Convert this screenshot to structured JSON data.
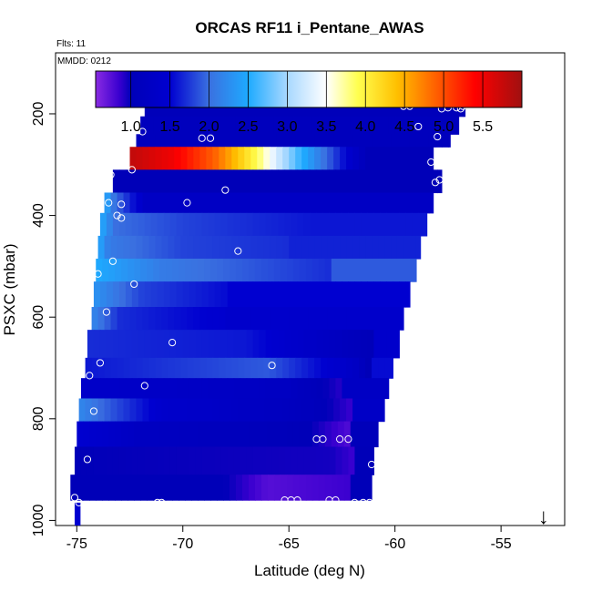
{
  "chart_data": {
    "type": "heatmap",
    "title": "ORCAS RF11 i_Pentane_AWAS",
    "flights_note": "Flts: 11",
    "date_note": "MMDD: 0212",
    "xlabel": "Latitude (deg N)",
    "ylabel": "PSXC (mbar)",
    "xlim": [
      -76,
      -52
    ],
    "ylim": [
      1010,
      80
    ],
    "x_ticks": [
      -75,
      -70,
      -65,
      -60,
      -55
    ],
    "y_ticks": [
      200,
      400,
      600,
      800,
      1000
    ],
    "colorbar": {
      "range": [
        0.55,
        6.0
      ],
      "ticks": [
        1.0,
        1.5,
        2.0,
        2.5,
        3.0,
        3.5,
        4.0,
        4.5,
        5.0,
        5.5
      ],
      "tick_labels": [
        "1.0",
        "1.5",
        "2.0",
        "2.5",
        "3.0",
        "3.5",
        "4.0",
        "4.5",
        "5.0",
        "5.5"
      ],
      "stops": [
        {
          "v": 0.55,
          "color": "#8a2be2"
        },
        {
          "v": 0.85,
          "color": "#3a00d0"
        },
        {
          "v": 1.0,
          "color": "#0000b8"
        },
        {
          "v": 1.5,
          "color": "#0000d0"
        },
        {
          "v": 2.0,
          "color": "#3a70e0"
        },
        {
          "v": 2.5,
          "color": "#1eaaff"
        },
        {
          "v": 3.0,
          "color": "#a8d8ff"
        },
        {
          "v": 3.5,
          "color": "#ffffff"
        },
        {
          "v": 3.9,
          "color": "#ffff50"
        },
        {
          "v": 4.4,
          "color": "#ffc000"
        },
        {
          "v": 4.9,
          "color": "#ff6000"
        },
        {
          "v": 5.4,
          "color": "#ff0000"
        },
        {
          "v": 6.0,
          "color": "#a01010"
        }
      ]
    },
    "layers": [
      {
        "p_top": 175,
        "p_bot": 205,
        "lat_start": -71.8,
        "lat_end": -56.7,
        "value": 1.05
      },
      {
        "p_top": 205,
        "p_bot": 240,
        "lat_start": -72.0,
        "lat_end": -57.0,
        "value": 1.1
      },
      {
        "p_top": 240,
        "p_bot": 265,
        "lat_start": -72.2,
        "lat_end": -57.4,
        "value": 1.1
      },
      {
        "p_top": 265,
        "p_bot": 310,
        "lat_start": -72.5,
        "lat_end": -58.2,
        "value": 1.0,
        "profile": [
          [
            -72.5,
            5.8
          ],
          [
            -70.5,
            5.5
          ],
          [
            -68.5,
            4.9
          ],
          [
            -67.5,
            4.4
          ],
          [
            -66.5,
            3.9
          ],
          [
            -65.5,
            3.2
          ],
          [
            -64.5,
            2.6
          ],
          [
            -63.5,
            2.1
          ],
          [
            -62.5,
            1.6
          ],
          [
            -61.5,
            1.1
          ]
        ]
      },
      {
        "p_top": 310,
        "p_bot": 355,
        "lat_start": -73.3,
        "lat_end": -57.8,
        "value": 1.0
      },
      {
        "p_top": 355,
        "p_bot": 395,
        "lat_start": -73.7,
        "lat_end": -58.2,
        "value": 1.25,
        "profile": [
          [
            -73.7,
            2.5
          ],
          [
            -73.2,
            2.0
          ],
          [
            -72.0,
            1.4
          ]
        ]
      },
      {
        "p_top": 395,
        "p_bot": 440,
        "lat_start": -73.9,
        "lat_end": -58.5,
        "value": 1.6,
        "profile": [
          [
            -73.9,
            2.5
          ],
          [
            -73.2,
            2.0
          ],
          [
            -70.0,
            1.8
          ],
          [
            -64.0,
            1.6
          ]
        ]
      },
      {
        "p_top": 440,
        "p_bot": 485,
        "lat_start": -74.0,
        "lat_end": -58.8,
        "value": 1.65,
        "profile": [
          [
            -74.0,
            2.5
          ],
          [
            -73.5,
            2.1
          ],
          [
            -70.0,
            1.8
          ],
          [
            -65.0,
            1.7
          ]
        ]
      },
      {
        "p_top": 485,
        "p_bot": 530,
        "lat_start": -74.1,
        "lat_end": -59.0,
        "value": 1.9,
        "profile": [
          [
            -74.1,
            2.5
          ],
          [
            -71.0,
            2.1
          ],
          [
            -67.0,
            1.9
          ],
          [
            -63.0,
            1.7
          ]
        ]
      },
      {
        "p_top": 530,
        "p_bot": 580,
        "lat_start": -74.2,
        "lat_end": -59.3,
        "value": 1.5,
        "profile": [
          [
            -74.2,
            2.3
          ],
          [
            -72.0,
            1.8
          ],
          [
            -68.0,
            1.55
          ]
        ]
      },
      {
        "p_top": 580,
        "p_bot": 625,
        "lat_start": -74.3,
        "lat_end": -59.6,
        "value": 1.4,
        "profile": [
          [
            -74.3,
            2.2
          ],
          [
            -73.0,
            1.7
          ],
          [
            -68.0,
            1.45
          ]
        ]
      },
      {
        "p_top": 625,
        "p_bot": 680,
        "lat_start": -74.5,
        "lat_end": -59.8,
        "value": 1.4,
        "profile": [
          [
            -74.5,
            1.7
          ],
          [
            -67.0,
            1.6
          ],
          [
            -61.0,
            1.0
          ]
        ]
      },
      {
        "p_top": 680,
        "p_bot": 720,
        "lat_start": -74.6,
        "lat_end": -60.1,
        "value": 1.55,
        "profile": [
          [
            -74.6,
            1.6
          ],
          [
            -66.0,
            1.9
          ],
          [
            -62.0,
            1.3
          ],
          [
            -61.0,
            0.9
          ]
        ]
      },
      {
        "p_top": 720,
        "p_bot": 760,
        "lat_start": -74.8,
        "lat_end": -60.3,
        "value": 1.25,
        "profile": [
          [
            -74.8,
            1.35
          ],
          [
            -65.0,
            1.2
          ],
          [
            -62.5,
            0.9
          ]
        ]
      },
      {
        "p_top": 760,
        "p_bot": 805,
        "lat_start": -74.9,
        "lat_end": -60.5,
        "value": 1.3,
        "profile": [
          [
            -74.9,
            2.2
          ],
          [
            -73.0,
            1.8
          ],
          [
            -71.0,
            1.4
          ],
          [
            -64.0,
            1.1
          ],
          [
            -62.0,
            0.85
          ]
        ]
      },
      {
        "p_top": 805,
        "p_bot": 855,
        "lat_start": -75.0,
        "lat_end": -60.8,
        "value": 1.05,
        "profile": [
          [
            -75.0,
            1.5
          ],
          [
            -72.0,
            1.2
          ],
          [
            -64.0,
            1.0
          ],
          [
            -62.0,
            0.75
          ]
        ]
      },
      {
        "p_top": 855,
        "p_bot": 910,
        "lat_start": -75.1,
        "lat_end": -61.0,
        "value": 1.0,
        "profile": [
          [
            -75.1,
            1.0
          ],
          [
            -63.0,
            0.95
          ],
          [
            -62.0,
            0.85
          ]
        ]
      },
      {
        "p_top": 910,
        "p_bot": 960,
        "lat_start": -75.3,
        "lat_end": -61.1,
        "value": 1.0,
        "profile": [
          [
            -75.3,
            1.0
          ],
          [
            -68.0,
            1.0
          ],
          [
            -66.0,
            0.75
          ],
          [
            -64.0,
            0.8
          ],
          [
            -62.0,
            0.85
          ]
        ]
      },
      {
        "p_top": 965,
        "p_bot": 1010,
        "lat_start": -75.1,
        "lat_end": -74.85,
        "value": 1.5
      }
    ],
    "points": [
      [
        -71.6,
        180
      ],
      [
        -70.2,
        180
      ],
      [
        -65.1,
        180
      ],
      [
        -59.6,
        185
      ],
      [
        -59.3,
        185
      ],
      [
        -57.8,
        190
      ],
      [
        -57.5,
        188
      ],
      [
        -57.1,
        188
      ],
      [
        -56.8,
        185
      ],
      [
        -56.6,
        178
      ],
      [
        -71.9,
        235
      ],
      [
        -69.1,
        248
      ],
      [
        -68.7,
        248
      ],
      [
        -58.9,
        225
      ],
      [
        -58.0,
        245
      ],
      [
        -56.9,
        190
      ],
      [
        -72.4,
        310
      ],
      [
        -73.4,
        320
      ],
      [
        -68.0,
        350
      ],
      [
        -58.3,
        295
      ],
      [
        -57.9,
        330
      ],
      [
        -58.1,
        335
      ],
      [
        -57.5,
        320
      ],
      [
        -73.5,
        375
      ],
      [
        -72.9,
        378
      ],
      [
        -72.9,
        405
      ],
      [
        -73.1,
        400
      ],
      [
        -69.8,
        375
      ],
      [
        -73.3,
        490
      ],
      [
        -67.4,
        470
      ],
      [
        -74.0,
        515
      ],
      [
        -72.3,
        535
      ],
      [
        -73.6,
        590
      ],
      [
        -70.5,
        650
      ],
      [
        -65.8,
        695
      ],
      [
        -73.9,
        690
      ],
      [
        -74.4,
        715
      ],
      [
        -71.8,
        735
      ],
      [
        -74.2,
        785
      ],
      [
        -63.7,
        840
      ],
      [
        -63.4,
        840
      ],
      [
        -62.6,
        840
      ],
      [
        -62.2,
        840
      ],
      [
        -61.1,
        890
      ],
      [
        -74.5,
        880
      ],
      [
        -75.1,
        955
      ],
      [
        -74.9,
        965
      ],
      [
        -71.2,
        965
      ],
      [
        -71.0,
        965
      ],
      [
        -65.2,
        960
      ],
      [
        -64.9,
        960
      ],
      [
        -64.6,
        960
      ],
      [
        -63.1,
        960
      ],
      [
        -62.8,
        960
      ],
      [
        -61.9,
        965
      ],
      [
        -61.5,
        965
      ],
      [
        -61.2,
        965
      ],
      [
        -60.9,
        965
      ]
    ],
    "marker": {
      "lat": -53.0,
      "label": "↓"
    }
  }
}
